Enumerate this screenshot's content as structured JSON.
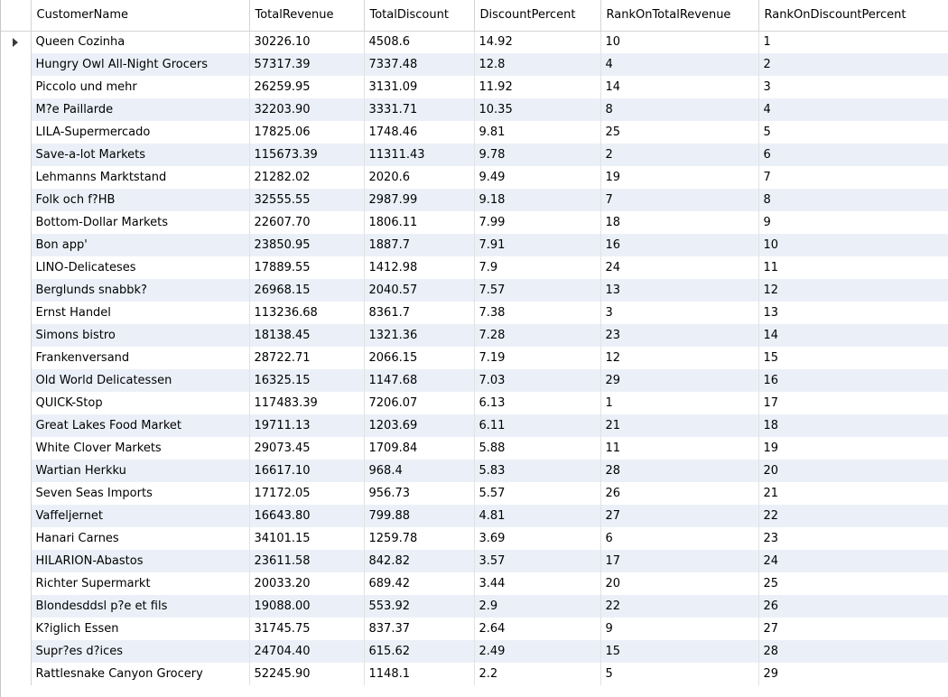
{
  "columns": [
    "CustomerName",
    "TotalRevenue",
    "TotalDiscount",
    "DiscountPercent",
    "RankOnTotalRevenue",
    "RankOnDiscountPercent"
  ],
  "current_row_icon": "row-pointer-icon",
  "rows": [
    [
      "Queen Cozinha",
      "30226.10",
      "4508.6",
      "14.92",
      "10",
      "1"
    ],
    [
      "Hungry Owl All-Night Grocers",
      "57317.39",
      "7337.48",
      "12.8",
      "4",
      "2"
    ],
    [
      "Piccolo und mehr",
      "26259.95",
      "3131.09",
      "11.92",
      "14",
      "3"
    ],
    [
      "M?e Paillarde",
      "32203.90",
      "3331.71",
      "10.35",
      "8",
      "4"
    ],
    [
      "LILA-Supermercado",
      "17825.06",
      "1748.46",
      "9.81",
      "25",
      "5"
    ],
    [
      "Save-a-lot Markets",
      "115673.39",
      "11311.43",
      "9.78",
      "2",
      "6"
    ],
    [
      "Lehmanns Marktstand",
      "21282.02",
      "2020.6",
      "9.49",
      "19",
      "7"
    ],
    [
      "Folk och f?HB",
      "32555.55",
      "2987.99",
      "9.18",
      "7",
      "8"
    ],
    [
      "Bottom-Dollar Markets",
      "22607.70",
      "1806.11",
      "7.99",
      "18",
      "9"
    ],
    [
      "Bon app'",
      "23850.95",
      "1887.7",
      "7.91",
      "16",
      "10"
    ],
    [
      "LINO-Delicateses",
      "17889.55",
      "1412.98",
      "7.9",
      "24",
      "11"
    ],
    [
      "Berglunds snabbk?",
      "26968.15",
      "2040.57",
      "7.57",
      "13",
      "12"
    ],
    [
      "Ernst Handel",
      "113236.68",
      "8361.7",
      "7.38",
      "3",
      "13"
    ],
    [
      "Simons bistro",
      "18138.45",
      "1321.36",
      "7.28",
      "23",
      "14"
    ],
    [
      "Frankenversand",
      "28722.71",
      "2066.15",
      "7.19",
      "12",
      "15"
    ],
    [
      "Old World Delicatessen",
      "16325.15",
      "1147.68",
      "7.03",
      "29",
      "16"
    ],
    [
      "QUICK-Stop",
      "117483.39",
      "7206.07",
      "6.13",
      "1",
      "17"
    ],
    [
      "Great Lakes Food Market",
      "19711.13",
      "1203.69",
      "6.11",
      "21",
      "18"
    ],
    [
      "White Clover Markets",
      "29073.45",
      "1709.84",
      "5.88",
      "11",
      "19"
    ],
    [
      "Wartian Herkku",
      "16617.10",
      "968.4",
      "5.83",
      "28",
      "20"
    ],
    [
      "Seven Seas Imports",
      "17172.05",
      "956.73",
      "5.57",
      "26",
      "21"
    ],
    [
      "Vaffeljernet",
      "16643.80",
      "799.88",
      "4.81",
      "27",
      "22"
    ],
    [
      "Hanari Carnes",
      "34101.15",
      "1259.78",
      "3.69",
      "6",
      "23"
    ],
    [
      "HILARION-Abastos",
      "23611.58",
      "842.82",
      "3.57",
      "17",
      "24"
    ],
    [
      "Richter Supermarkt",
      "20033.20",
      "689.42",
      "3.44",
      "20",
      "25"
    ],
    [
      "Blondesddsl p?e et fils",
      "19088.00",
      "553.92",
      "2.9",
      "22",
      "26"
    ],
    [
      "K?iglich Essen",
      "31745.75",
      "837.37",
      "2.64",
      "9",
      "27"
    ],
    [
      "Supr?es d?ices",
      "24704.40",
      "615.62",
      "2.49",
      "15",
      "28"
    ],
    [
      "Rattlesnake Canyon Grocery",
      "52245.90",
      "1148.1",
      "2.2",
      "5",
      "29"
    ]
  ]
}
